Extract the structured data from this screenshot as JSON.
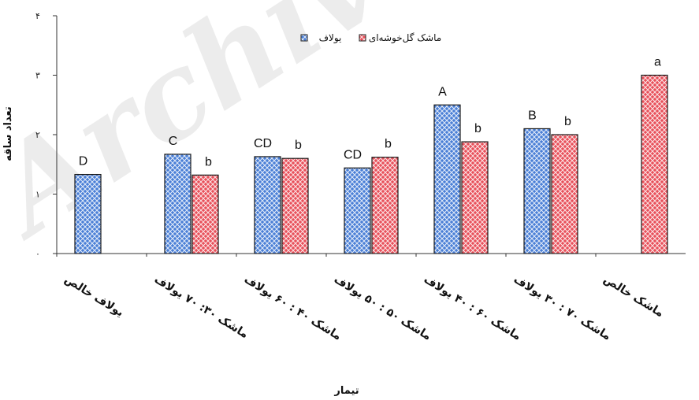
{
  "chart_data": {
    "type": "bar",
    "xlabel": "تیمار",
    "ylabel": "تعداد ساقه",
    "ylim": [
      0,
      4
    ],
    "yticks": [
      "۰",
      "۱",
      "۲",
      "۳",
      "۴"
    ],
    "grid": false,
    "legend_position": "top",
    "categories": [
      "یولاف خالص",
      "ماشک ۳۰: ۷۰ یولاف",
      "ماشک ۴۰ : ۶۰ یولاف",
      "ماشک ۵۰ : ۵۰ یولاف",
      "ماشک ۶۰ : ۴۰ یولاف",
      "ماشک ۷۰ : ۳۰ یولاف",
      "ماشک خالص"
    ],
    "series": [
      {
        "name": "یولاف",
        "color": "#4a7fd6",
        "values": [
          1.33,
          1.67,
          1.63,
          1.44,
          2.5,
          2.1,
          null
        ],
        "letters": [
          "D",
          "C",
          "CD",
          "CD",
          "A",
          "B",
          ""
        ]
      },
      {
        "name": "ماشک گل‌خوشه‌ای",
        "color": "#e8505a",
        "values": [
          null,
          1.32,
          1.6,
          1.62,
          1.88,
          2.0,
          3.0
        ],
        "letters": [
          "",
          "b",
          "b",
          "b",
          "b",
          "b",
          "a"
        ]
      }
    ]
  },
  "watermark": "Archive"
}
